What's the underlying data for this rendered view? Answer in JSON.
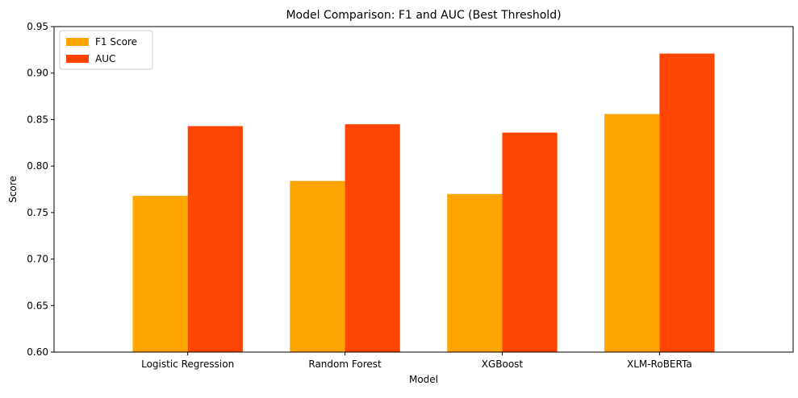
{
  "chart_data": {
    "type": "bar",
    "title": "Model Comparison: F1 and AUC (Best Threshold)",
    "xlabel": "Model",
    "ylabel": "Score",
    "categories": [
      "Logistic Regression",
      "Random Forest",
      "XGBoost",
      "XLM-RoBERTa"
    ],
    "series": [
      {
        "name": "F1 Score",
        "color": "#ffa500",
        "values": [
          0.768,
          0.784,
          0.77,
          0.856
        ]
      },
      {
        "name": "AUC",
        "color": "#ff4500",
        "values": [
          0.843,
          0.845,
          0.836,
          0.921
        ]
      }
    ],
    "ylim": [
      0.6,
      0.95
    ],
    "yticks": [
      "0.60",
      "0.65",
      "0.70",
      "0.75",
      "0.80",
      "0.85",
      "0.90",
      "0.95"
    ],
    "grid": false,
    "legend_position": "top-left"
  }
}
